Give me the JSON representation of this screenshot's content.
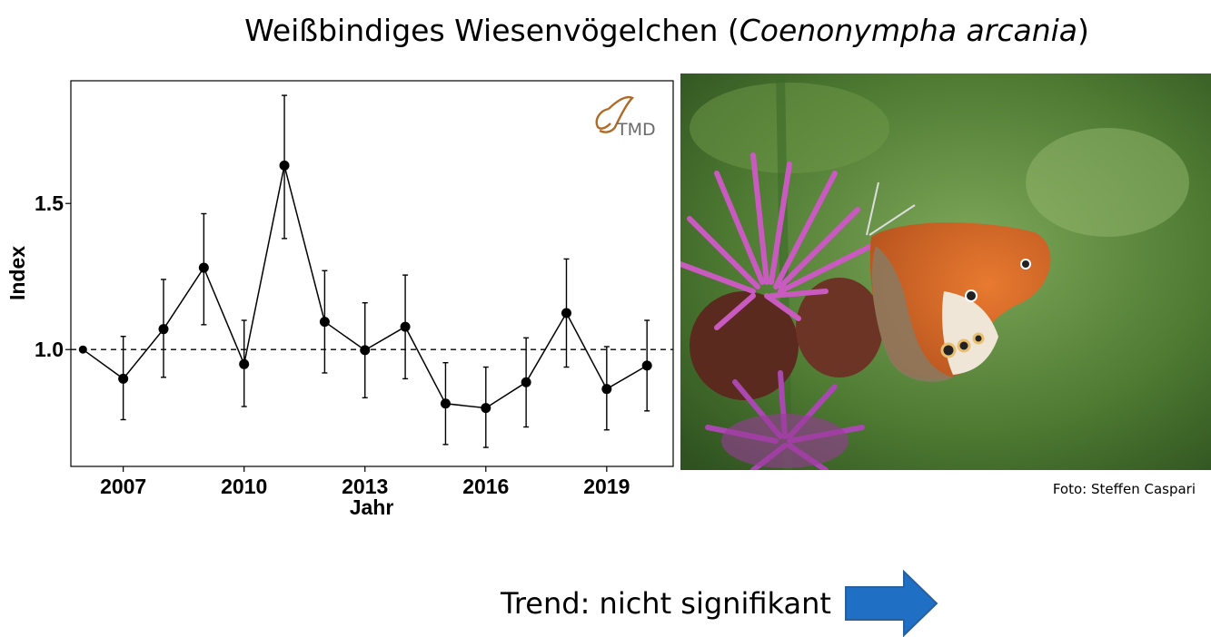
{
  "title": {
    "prefix": "Weißbindiges Wiesenvögelchen (",
    "species": "Coenonympha arcania",
    "suffix": ")"
  },
  "chart_data": {
    "type": "line",
    "xlabel": "Jahr",
    "ylabel": "Index",
    "x": [
      2006,
      2007,
      2008,
      2009,
      2010,
      2011,
      2012,
      2013,
      2014,
      2015,
      2016,
      2017,
      2018,
      2019,
      2020
    ],
    "values": [
      1.0,
      0.9,
      1.07,
      1.28,
      0.95,
      1.63,
      1.095,
      0.998,
      1.078,
      0.815,
      0.8,
      0.888,
      1.125,
      0.865,
      0.945
    ],
    "error_low": [
      1.0,
      0.76,
      0.905,
      1.085,
      0.805,
      1.38,
      0.92,
      0.835,
      0.9,
      0.675,
      0.665,
      0.735,
      0.94,
      0.725,
      0.79
    ],
    "error_high": [
      1.0,
      1.045,
      1.24,
      1.465,
      1.1,
      1.87,
      1.27,
      1.16,
      1.255,
      0.955,
      0.94,
      1.04,
      1.31,
      1.01,
      1.1
    ],
    "xticks": [
      2007,
      2010,
      2013,
      2016,
      2019
    ],
    "yticks": [
      1.0,
      1.5
    ],
    "ytick_labels": [
      "1.0",
      "1.5"
    ],
    "xlim": [
      2005.7,
      2020.65
    ],
    "ylim": [
      0.6,
      1.92
    ],
    "reference_line": 1.0,
    "grid": false,
    "logo_text": "TMD"
  },
  "photo": {
    "credit": "Foto: Steffen Caspari",
    "colors": {
      "background": "#5c8a3c",
      "flower": "#c040b8",
      "wing": "#d8692a"
    }
  },
  "trend": {
    "label": "Trend: nicht signifikant",
    "arrow_color": "#1f6fc4"
  }
}
